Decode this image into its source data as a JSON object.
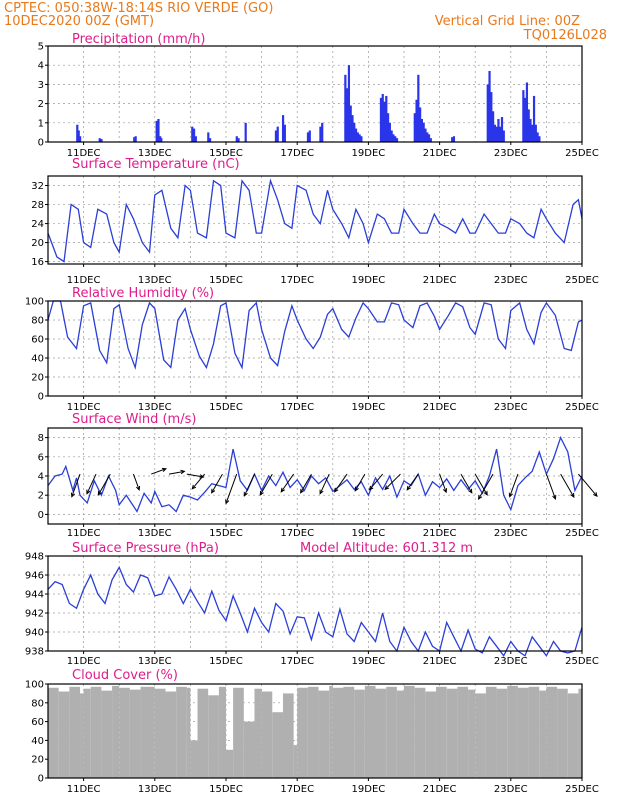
{
  "header": {
    "left_line1": "CPTEC:   050:38W-18:14S  RIO VERDE (GO)",
    "left_line2": "10DEC2020 00Z (GMT)",
    "right_line1": "Vertical Grid Line: 00Z",
    "right_line2": "TQ0126L028"
  },
  "colors": {
    "header": "#e8791c",
    "panel_title": "#e01c8c",
    "line": "#2b3fd6",
    "precip_bar": "#2a34e8",
    "cloud": "#b0b0b0"
  },
  "date_labels": [
    "11DEC",
    "13DEC",
    "15DEC",
    "17DEC",
    "19DEC",
    "21DEC",
    "23DEC",
    "25DEC"
  ],
  "chart_data": [
    {
      "id": "precip",
      "type": "bar",
      "title": "Precipitation (mm/h)",
      "x_range_days": [
        0,
        15
      ],
      "ylim": [
        0,
        5
      ],
      "yticks": [
        0,
        1,
        2,
        3,
        4,
        5
      ],
      "grid": true,
      "x": [
        0.82,
        0.86,
        0.9,
        1.45,
        1.5,
        2.42,
        2.46,
        3.05,
        3.1,
        3.15,
        3.18,
        4.05,
        4.1,
        4.15,
        4.5,
        4.55,
        5.3,
        5.35,
        5.55,
        6.4,
        6.45,
        6.6,
        6.65,
        7.3,
        7.35,
        7.65,
        7.7,
        8.35,
        8.4,
        8.45,
        8.5,
        8.55,
        8.6,
        8.65,
        8.7,
        8.75,
        8.8,
        9.35,
        9.4,
        9.45,
        9.5,
        9.55,
        9.6,
        9.65,
        9.7,
        9.75,
        9.8,
        10.3,
        10.35,
        10.4,
        10.45,
        10.5,
        10.55,
        10.6,
        10.65,
        10.7,
        10.75,
        11.35,
        11.4,
        12.35,
        12.4,
        12.45,
        12.5,
        12.55,
        12.6,
        12.65,
        12.7,
        12.75,
        12.8,
        13.35,
        13.4,
        13.45,
        13.5,
        13.55,
        13.6,
        13.65,
        13.7,
        13.75,
        13.8
      ],
      "values": [
        0.9,
        0.6,
        0.3,
        0.2,
        0.15,
        0.25,
        0.3,
        1.1,
        1.2,
        0.3,
        0.2,
        0.8,
        0.7,
        0.3,
        0.5,
        0.2,
        0.3,
        0.2,
        1.0,
        0.6,
        0.8,
        1.4,
        0.9,
        0.5,
        0.6,
        0.8,
        1.0,
        3.5,
        2.8,
        4.0,
        1.9,
        1.4,
        1.0,
        0.7,
        0.5,
        0.4,
        0.3,
        2.3,
        2.5,
        2.1,
        2.4,
        1.5,
        1.0,
        0.6,
        0.4,
        0.3,
        0.2,
        1.5,
        2.2,
        3.5,
        1.8,
        1.2,
        1.0,
        0.7,
        0.5,
        0.4,
        0.2,
        0.25,
        0.3,
        3.0,
        3.7,
        2.6,
        1.6,
        0.9,
        0.8,
        1.2,
        0.8,
        1.3,
        0.6,
        2.7,
        2.3,
        3.1,
        1.7,
        1.2,
        0.9,
        2.4,
        0.9,
        0.5,
        0.3
      ]
    },
    {
      "id": "temp",
      "type": "line",
      "title": "Surface Temperature (nC)",
      "x_range_days": [
        0,
        15
      ],
      "ylim": [
        15.5,
        34
      ],
      "yticks": [
        16,
        20,
        24,
        28,
        32
      ],
      "grid": true,
      "x": [
        0,
        0.1,
        0.25,
        0.45,
        0.65,
        0.85,
        1.0,
        1.2,
        1.4,
        1.65,
        1.85,
        2.0,
        2.2,
        2.4,
        2.65,
        2.85,
        3.0,
        3.2,
        3.45,
        3.65,
        3.85,
        4.0,
        4.2,
        4.45,
        4.65,
        4.85,
        5.0,
        5.25,
        5.45,
        5.65,
        5.85,
        6.0,
        6.25,
        6.45,
        6.65,
        6.85,
        7.0,
        7.25,
        7.45,
        7.65,
        7.85,
        8.0,
        8.25,
        8.45,
        8.65,
        8.85,
        9.0,
        9.25,
        9.45,
        9.65,
        9.85,
        10.0,
        10.25,
        10.45,
        10.65,
        10.85,
        11.0,
        11.25,
        11.45,
        11.65,
        11.85,
        12.0,
        12.25,
        12.45,
        12.65,
        12.85,
        13.0,
        13.25,
        13.45,
        13.65,
        13.85,
        14.0,
        14.25,
        14.5,
        14.75,
        14.9,
        15.0
      ],
      "values": [
        22,
        20,
        17,
        16,
        28,
        27,
        20,
        19,
        27,
        26,
        20,
        18,
        28,
        25,
        20,
        18,
        30,
        31,
        23,
        21,
        32,
        31,
        22,
        21,
        33,
        32,
        22,
        21,
        33,
        31,
        22,
        22,
        33,
        29,
        24,
        23,
        32,
        31,
        26,
        24,
        31,
        27,
        24,
        21,
        27,
        24,
        20,
        26,
        25,
        22,
        22,
        27,
        24,
        22,
        22,
        26,
        24,
        23,
        22,
        25,
        22,
        22,
        26,
        24,
        22,
        22,
        25,
        24,
        22,
        21,
        27,
        25,
        22,
        20,
        28,
        29,
        25
      ]
    },
    {
      "id": "rh",
      "type": "line",
      "title": "Relative Humidity (%)",
      "x_range_days": [
        0,
        15
      ],
      "ylim": [
        0,
        100
      ],
      "yticks": [
        0,
        20,
        40,
        60,
        80,
        100
      ],
      "grid": true,
      "x": [
        0,
        0.15,
        0.35,
        0.55,
        0.8,
        1.0,
        1.2,
        1.45,
        1.65,
        1.85,
        2.0,
        2.25,
        2.45,
        2.65,
        2.85,
        3.0,
        3.25,
        3.45,
        3.65,
        3.85,
        4.0,
        4.25,
        4.45,
        4.65,
        4.85,
        5.0,
        5.25,
        5.45,
        5.65,
        5.85,
        6.0,
        6.25,
        6.45,
        6.65,
        6.85,
        7.0,
        7.25,
        7.45,
        7.65,
        7.85,
        8.0,
        8.25,
        8.45,
        8.65,
        8.85,
        9.0,
        9.25,
        9.45,
        9.65,
        9.85,
        10.0,
        10.25,
        10.45,
        10.65,
        10.85,
        11.0,
        11.25,
        11.45,
        11.65,
        11.85,
        12.0,
        12.25,
        12.45,
        12.65,
        12.85,
        13.0,
        13.25,
        13.45,
        13.65,
        13.85,
        14.0,
        14.25,
        14.5,
        14.7,
        14.9,
        15.0
      ],
      "values": [
        80,
        100,
        100,
        62,
        50,
        95,
        98,
        48,
        35,
        92,
        96,
        50,
        30,
        75,
        98,
        92,
        38,
        30,
        80,
        92,
        70,
        42,
        30,
        55,
        95,
        98,
        45,
        30,
        90,
        98,
        70,
        40,
        32,
        68,
        95,
        80,
        60,
        50,
        62,
        86,
        92,
        70,
        62,
        82,
        98,
        92,
        78,
        78,
        98,
        96,
        80,
        72,
        95,
        98,
        84,
        70,
        85,
        98,
        94,
        72,
        65,
        98,
        96,
        60,
        50,
        90,
        98,
        70,
        55,
        88,
        98,
        85,
        50,
        48,
        78,
        80
      ]
    },
    {
      "id": "wind",
      "type": "line",
      "title": "Surface Wind (m/s)",
      "x_range_days": [
        0,
        15
      ],
      "ylim": [
        -1,
        9
      ],
      "yticks": [
        0,
        2,
        4,
        6,
        8
      ],
      "grid": true,
      "x": [
        0,
        0.2,
        0.4,
        0.5,
        0.7,
        0.8,
        0.9,
        1.1,
        1.3,
        1.5,
        1.7,
        1.9,
        2.0,
        2.2,
        2.5,
        2.7,
        2.9,
        3.0,
        3.2,
        3.4,
        3.6,
        3.8,
        4.0,
        4.2,
        4.4,
        4.6,
        4.8,
        5.0,
        5.2,
        5.4,
        5.6,
        5.8,
        6.0,
        6.2,
        6.4,
        6.6,
        6.8,
        7.0,
        7.2,
        7.4,
        7.6,
        7.8,
        8.0,
        8.2,
        8.4,
        8.6,
        8.8,
        9.0,
        9.2,
        9.4,
        9.6,
        9.8,
        10.0,
        10.2,
        10.4,
        10.6,
        10.8,
        11.0,
        11.2,
        11.4,
        11.6,
        11.8,
        12.0,
        12.2,
        12.4,
        12.6,
        12.8,
        13.0,
        13.2,
        13.4,
        13.6,
        13.8,
        14.0,
        14.2,
        14.4,
        14.6,
        14.8,
        15.0
      ],
      "values": [
        3,
        4,
        4.2,
        5,
        2.5,
        3.8,
        2,
        1.2,
        3.5,
        2,
        4,
        2.5,
        1,
        2,
        0.3,
        2.2,
        1.2,
        2.4,
        0.8,
        1,
        0.3,
        2,
        1.8,
        1.5,
        2.3,
        3.2,
        3,
        2.8,
        6.8,
        3.5,
        2.5,
        4.2,
        2.5,
        4,
        3,
        4.4,
        2.8,
        3.6,
        2.5,
        4,
        3.2,
        3.8,
        2.4,
        3,
        3.6,
        2.6,
        3.4,
        2,
        3.8,
        2.6,
        4,
        1.8,
        3.5,
        3,
        4.2,
        2,
        3.4,
        2.8,
        3.7,
        2.5,
        3.6,
        2.6,
        3.5,
        2.2,
        4,
        6.8,
        2,
        0.5,
        3,
        3.8,
        4.5,
        6.5,
        4.2,
        5.8,
        8,
        6.5,
        2.5,
        4
      ],
      "wind_arrows": [
        {
          "x": 0.9,
          "dir": 200,
          "len": 1.0
        },
        {
          "x": 1.35,
          "dir": 205,
          "len": 0.8
        },
        {
          "x": 1.75,
          "dir": 210,
          "len": 1.0
        },
        {
          "x": 2.4,
          "dir": 160,
          "len": 0.4
        },
        {
          "x": 2.9,
          "dir": 70,
          "len": 0.3
        },
        {
          "x": 3.4,
          "dir": 80,
          "len": 0.3
        },
        {
          "x": 3.9,
          "dir": 100,
          "len": 0.4
        },
        {
          "x": 4.4,
          "dir": 220,
          "len": 0.6
        },
        {
          "x": 4.9,
          "dir": 210,
          "len": 0.8
        },
        {
          "x": 5.3,
          "dir": 200,
          "len": 1.6
        },
        {
          "x": 5.8,
          "dir": 205,
          "len": 1.0
        },
        {
          "x": 6.3,
          "dir": 210,
          "len": 1.0
        },
        {
          "x": 6.9,
          "dir": 215,
          "len": 0.8
        },
        {
          "x": 7.4,
          "dir": 210,
          "len": 0.8
        },
        {
          "x": 7.9,
          "dir": 205,
          "len": 0.8
        },
        {
          "x": 8.4,
          "dir": 215,
          "len": 0.8
        },
        {
          "x": 8.9,
          "dir": 210,
          "len": 0.6
        },
        {
          "x": 9.4,
          "dir": 220,
          "len": 0.7
        },
        {
          "x": 9.9,
          "dir": 225,
          "len": 0.8
        },
        {
          "x": 10.4,
          "dir": 215,
          "len": 0.6
        },
        {
          "x": 11.0,
          "dir": 160,
          "len": 0.6
        },
        {
          "x": 11.6,
          "dir": 150,
          "len": 0.8
        },
        {
          "x": 12.0,
          "dir": 150,
          "len": 1.0
        },
        {
          "x": 12.5,
          "dir": 210,
          "len": 1.4
        },
        {
          "x": 13.2,
          "dir": 200,
          "len": 1.0
        },
        {
          "x": 14.0,
          "dir": 160,
          "len": 1.2
        },
        {
          "x": 14.4,
          "dir": 150,
          "len": 1.2
        },
        {
          "x": 14.9,
          "dir": 140,
          "len": 1.4
        }
      ]
    },
    {
      "id": "pressure",
      "type": "line",
      "title": "Surface Pressure (hPa)",
      "annotation": "Model Altitude: 601.312 m",
      "x_range_days": [
        0,
        15
      ],
      "ylim": [
        938,
        948
      ],
      "yticks": [
        938,
        940,
        942,
        944,
        946,
        948
      ],
      "grid": true,
      "x": [
        0,
        0.2,
        0.4,
        0.6,
        0.8,
        1.0,
        1.2,
        1.4,
        1.6,
        1.8,
        2.0,
        2.2,
        2.4,
        2.6,
        2.8,
        3.0,
        3.2,
        3.4,
        3.6,
        3.8,
        4.0,
        4.2,
        4.4,
        4.6,
        4.8,
        5.0,
        5.2,
        5.4,
        5.6,
        5.8,
        6.0,
        6.2,
        6.4,
        6.6,
        6.8,
        7.0,
        7.2,
        7.4,
        7.6,
        7.8,
        8.0,
        8.2,
        8.4,
        8.6,
        8.8,
        9.0,
        9.2,
        9.4,
        9.6,
        9.8,
        10.0,
        10.2,
        10.4,
        10.6,
        10.8,
        11.0,
        11.2,
        11.4,
        11.6,
        11.8,
        12.0,
        12.2,
        12.4,
        12.6,
        12.8,
        13.0,
        13.2,
        13.4,
        13.6,
        13.8,
        14.0,
        14.2,
        14.4,
        14.6,
        14.8,
        15.0
      ],
      "values": [
        944.5,
        945.3,
        945,
        943,
        942.5,
        944.5,
        946,
        944,
        943,
        945.5,
        946.8,
        945,
        944.2,
        946,
        945.7,
        943.8,
        944,
        945.8,
        944.5,
        943,
        944.5,
        943.2,
        942,
        944.3,
        942.3,
        941.2,
        943.8,
        942,
        940,
        942.5,
        941,
        940,
        943,
        942.2,
        939.8,
        941.6,
        941.5,
        939.2,
        942,
        940,
        939.5,
        942.4,
        939.8,
        939,
        941,
        940,
        939,
        942,
        939,
        938,
        940.5,
        939,
        938,
        940,
        938.5,
        938,
        941,
        939.5,
        938,
        940.2,
        938.2,
        937.8,
        939.5,
        938.5,
        937.5,
        939,
        938,
        937.5,
        939.5,
        938.5,
        937.5,
        939,
        938,
        937.8,
        938,
        940.5
      ]
    },
    {
      "id": "cloud",
      "type": "area",
      "title": "Cloud Cover (%)",
      "x_range_days": [
        0,
        15
      ],
      "ylim": [
        0,
        100
      ],
      "yticks": [
        0,
        20,
        40,
        60,
        80,
        100
      ],
      "grid": true,
      "x": [
        0,
        0.3,
        0.6,
        0.9,
        1.0,
        1.2,
        1.5,
        1.8,
        2.0,
        2.3,
        2.6,
        3.0,
        3.3,
        3.6,
        3.9,
        4.0,
        4.2,
        4.5,
        4.8,
        5.0,
        5.2,
        5.5,
        5.8,
        6.0,
        6.3,
        6.6,
        6.9,
        7.0,
        7.3,
        7.6,
        7.9,
        8.0,
        8.3,
        8.6,
        8.9,
        9.2,
        9.5,
        9.8,
        10.0,
        10.3,
        10.6,
        10.9,
        11.2,
        11.5,
        11.8,
        12.0,
        12.3,
        12.6,
        12.9,
        13.2,
        13.5,
        13.8,
        14.0,
        14.3,
        14.6,
        14.9,
        15.0
      ],
      "values": [
        96,
        92,
        97,
        90,
        95,
        97,
        93,
        98,
        96,
        94,
        97,
        95,
        92,
        97,
        96,
        40,
        95,
        88,
        97,
        30,
        96,
        60,
        95,
        92,
        70,
        90,
        35,
        96,
        97,
        93,
        98,
        96,
        97,
        94,
        98,
        95,
        97,
        93,
        98,
        96,
        92,
        97,
        95,
        97,
        94,
        90,
        97,
        95,
        98,
        96,
        97,
        93,
        97,
        95,
        90,
        95,
        97
      ]
    }
  ]
}
